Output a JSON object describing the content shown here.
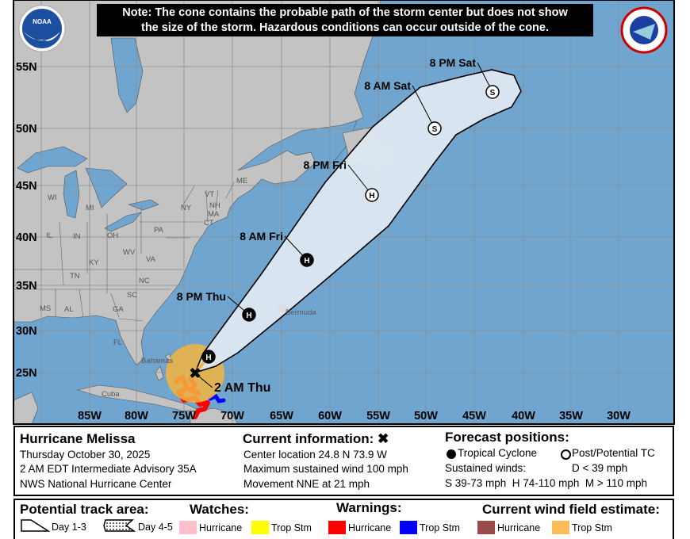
{
  "note": {
    "line1": "Note: The cone contains the probable path of the storm center but does not show",
    "line2": "the size of the storm. Hazardous conditions can occur outside of the cone."
  },
  "logos": {
    "left": "NOAA",
    "right": "NATIONAL WEATHER SERVICE"
  },
  "map": {
    "colors": {
      "ocean": "#6fa5cf",
      "land": "#c3c3c3",
      "cone": "#dde8f1",
      "trop_storm_wind": "#f3b441",
      "hurricane_warning": "#ff0000",
      "trop_storm_warning": "#0000ff"
    },
    "lon_labels": [
      "85W",
      "80W",
      "75W",
      "70W",
      "65W",
      "60W",
      "55W",
      "50W",
      "45W",
      "40W",
      "35W",
      "30W"
    ],
    "lat_labels": [
      "55N",
      "50N",
      "45N",
      "40N",
      "35N",
      "30N",
      "25N"
    ],
    "places": [
      "WI",
      "MI",
      "NY",
      "VT",
      "NH",
      "ME",
      "MA",
      "CT",
      "PA",
      "OH",
      "IN",
      "IL",
      "WV",
      "VA",
      "KY",
      "TN",
      "NC",
      "SC",
      "GA",
      "AL",
      "MS",
      "FL",
      "Cuba",
      "Bermuda",
      "Bahamas"
    ],
    "forecast_points": [
      {
        "label": "2 AM Thu",
        "symbol": "X"
      },
      {
        "label": "",
        "symbol": "H"
      },
      {
        "label": "8 PM Thu",
        "symbol": "H"
      },
      {
        "label": "8 AM Fri",
        "symbol": "H"
      },
      {
        "label": "8 PM Fri",
        "symbol": "H"
      },
      {
        "label": "8 AM Sat",
        "symbol": "S"
      },
      {
        "label": "8 PM Sat",
        "symbol": "S"
      }
    ]
  },
  "info": {
    "storm_name": "Hurricane Melissa",
    "date": "Thursday October 30, 2025",
    "advisory": "2 AM EDT Intermediate Advisory 35A",
    "center": "NWS National Hurricane Center",
    "current_title": "Current information: ✖",
    "location": "Center location 24.8 N 73.9 W",
    "max_wind": "Maximum sustained wind 100 mph",
    "movement": "Movement NNE at 21 mph",
    "forecast_title": "Forecast positions:",
    "tropical_cyclone": "Tropical Cyclone",
    "post_potential": "Post/Potential TC",
    "sustained_winds": "Sustained winds:",
    "d": "D < 39 mph",
    "shm": "S 39-73 mph  H 74-110 mph  M > 110 mph"
  },
  "legend": {
    "track_title": "Potential track area:",
    "day13": "Day 1-3",
    "day45": "Day 4-5",
    "watches_title": "Watches:",
    "warnings_title": "Warnings:",
    "wind_title": "Current wind field estimate:",
    "hurricane": "Hurricane",
    "trop_stm": "Trop Stm",
    "colors": {
      "hurricane_watch": "#ffc0cb",
      "trop_stm_watch": "#ffff00",
      "hurricane_warning": "#ff0000",
      "trop_stm_warning": "#0000ff",
      "hurricane_wind": "#9b4a4a",
      "trop_stm_wind": "#ffbb55"
    }
  }
}
